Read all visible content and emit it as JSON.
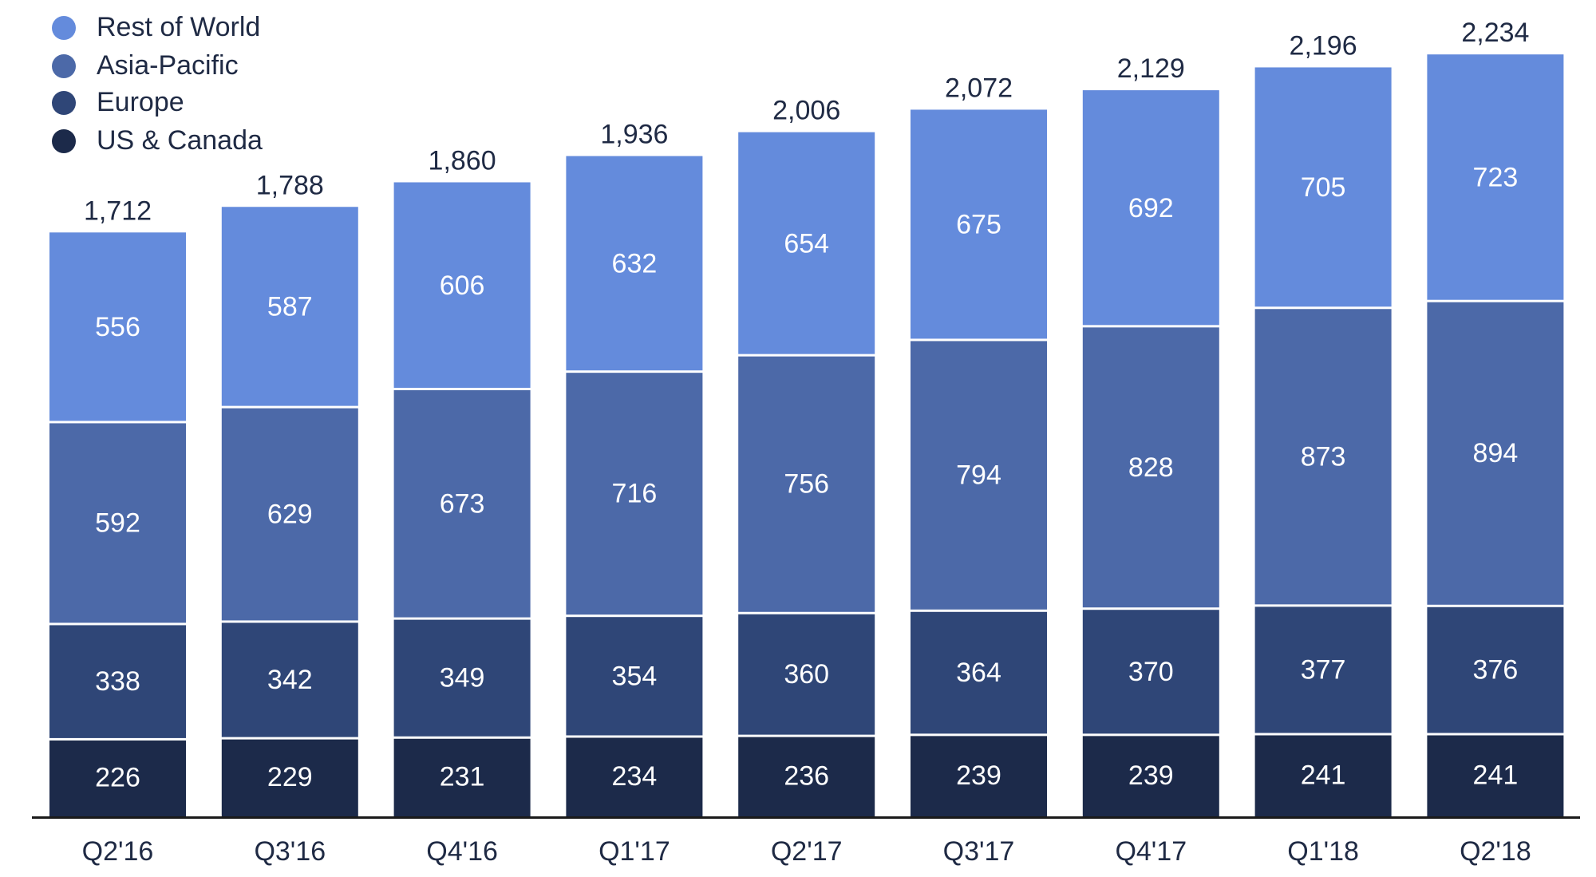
{
  "chart_data": {
    "type": "bar",
    "stacked": true,
    "title": "",
    "xlabel": "",
    "ylabel": "",
    "ylim": [
      0,
      2300
    ],
    "grid": false,
    "legend_position": "top-left",
    "categories": [
      "Q2'16",
      "Q3'16",
      "Q4'16",
      "Q1'17",
      "Q2'17",
      "Q3'17",
      "Q4'17",
      "Q1'18",
      "Q2'18"
    ],
    "series": [
      {
        "name": "US & Canada",
        "color": "#1c2a4a",
        "values": [
          226,
          229,
          231,
          234,
          236,
          239,
          239,
          241,
          241
        ]
      },
      {
        "name": "Europe",
        "color": "#2f4677",
        "values": [
          338,
          342,
          349,
          354,
          360,
          364,
          370,
          377,
          376
        ]
      },
      {
        "name": "Asia-Pacific",
        "color": "#4c69a8",
        "values": [
          592,
          629,
          673,
          716,
          756,
          794,
          828,
          873,
          894
        ]
      },
      {
        "name": "Rest of World",
        "color": "#648bdc",
        "values": [
          556,
          587,
          606,
          632,
          654,
          675,
          692,
          705,
          723
        ]
      }
    ],
    "totals": [
      "1,712",
      "1,788",
      "1,860",
      "1,936",
      "2,006",
      "2,072",
      "2,129",
      "2,196",
      "2,234"
    ],
    "legend_order": [
      "Rest of World",
      "Asia-Pacific",
      "Europe",
      "US & Canada"
    ]
  }
}
